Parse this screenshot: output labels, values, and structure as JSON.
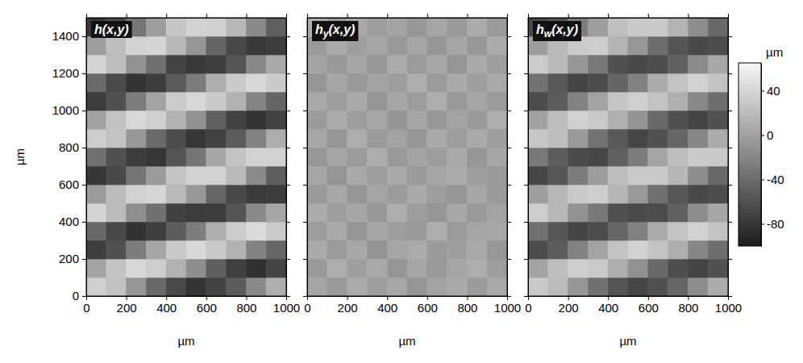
{
  "chart_data": [
    {
      "type": "heatmap",
      "title": "h(x,y)",
      "x": [
        50,
        150,
        250,
        350,
        450,
        550,
        650,
        750,
        850,
        950
      ],
      "y": [
        50,
        150,
        250,
        350,
        450,
        550,
        650,
        750,
        850,
        950,
        1050,
        1150,
        1250,
        1350,
        1450
      ],
      "z": [
        [
          35,
          25,
          -8,
          -42,
          -66,
          -82,
          -70,
          -52,
          -18,
          10
        ],
        [
          2,
          26,
          41,
          34,
          12,
          -14,
          -50,
          -72,
          -84,
          -70
        ],
        [
          -74,
          -60,
          -27,
          3,
          31,
          42,
          30,
          12,
          -23,
          -44
        ],
        [
          -42,
          -66,
          -83,
          -74,
          -52,
          -27,
          10,
          32,
          43,
          30
        ],
        [
          39,
          20,
          -13,
          -36,
          -72,
          -76,
          -76,
          -58,
          -17,
          4
        ],
        [
          -4,
          20,
          36,
          40,
          18,
          -7,
          -44,
          -66,
          -77,
          -76
        ],
        [
          -80,
          -66,
          -33,
          -4,
          26,
          36,
          36,
          18,
          -17,
          -50
        ],
        [
          -36,
          -60,
          -76,
          -80,
          -58,
          -33,
          4,
          26,
          37,
          36
        ],
        [
          34,
          26,
          -7,
          -41,
          -64,
          -80,
          -71,
          -52,
          -23,
          9
        ],
        [
          0,
          25,
          42,
          35,
          13,
          -12,
          -49,
          -71,
          -82,
          -71
        ],
        [
          -75,
          -61,
          -28,
          2,
          32,
          41,
          31,
          13,
          -22,
          -45
        ],
        [
          -41,
          -65,
          -82,
          -75,
          -53,
          -28,
          9,
          31,
          42,
          31
        ],
        [
          38,
          22,
          -11,
          -37,
          -70,
          -78,
          -74,
          -57,
          -19,
          6
        ],
        [
          -3,
          21,
          37,
          39,
          17,
          -8,
          -45,
          -67,
          -78,
          -75
        ],
        [
          -79,
          -65,
          -32,
          -3,
          27,
          37,
          35,
          17,
          -18,
          -49
        ]
      ],
      "xlim": [
        0,
        1000
      ],
      "ylim": [
        0,
        1500
      ],
      "xticks": [
        0,
        200,
        400,
        600,
        800,
        1000
      ],
      "yticks": [
        0,
        200,
        400,
        600,
        800,
        1000,
        1200,
        1400
      ],
      "x_label": "µm",
      "y_label": "µm"
    },
    {
      "type": "heatmap",
      "title": "hy(x,y)",
      "x": [
        50,
        150,
        250,
        350,
        450,
        550,
        650,
        750,
        850,
        950
      ],
      "y": [
        50,
        150,
        250,
        350,
        450,
        550,
        650,
        750,
        850,
        950,
        1050,
        1150,
        1250,
        1350,
        1450
      ],
      "z": [
        [
          4,
          -6,
          8,
          -3,
          5,
          -9,
          2,
          7,
          -4,
          6
        ],
        [
          -5,
          9,
          -2,
          6,
          -8,
          3,
          -6,
          4,
          9,
          -3
        ],
        [
          7,
          -4,
          5,
          -10,
          3,
          8,
          -5,
          -2,
          6,
          -7
        ],
        [
          -3,
          6,
          -9,
          4,
          -2,
          -6,
          10,
          -4,
          3,
          5
        ],
        [
          8,
          -2,
          4,
          -7,
          9,
          -3,
          -8,
          5,
          -6,
          2
        ],
        [
          -6,
          5,
          -8,
          3,
          -4,
          7,
          -2,
          -9,
          4,
          -5
        ],
        [
          3,
          -9,
          6,
          -2,
          7,
          -5,
          4,
          8,
          -3,
          -6
        ],
        [
          -7,
          3,
          -4,
          9,
          -6,
          2,
          -3,
          6,
          -8,
          4
        ],
        [
          5,
          -7,
          9,
          -4,
          2,
          -8,
          6,
          -3,
          7,
          -2
        ],
        [
          -4,
          8,
          -3,
          5,
          -9,
          4,
          -7,
          2,
          -5,
          9
        ],
        [
          6,
          -3,
          7,
          -8,
          4,
          -2,
          9,
          -6,
          3,
          -4
        ],
        [
          -8,
          4,
          -6,
          2,
          -3,
          9,
          -4,
          7,
          -2,
          6
        ],
        [
          2,
          -5,
          3,
          -7,
          8,
          -4,
          5,
          -9,
          6,
          -3
        ],
        [
          -5,
          7,
          -2,
          4,
          -6,
          3,
          -8,
          4,
          -7,
          8
        ],
        [
          9,
          -4,
          6,
          -3,
          2,
          -7,
          3,
          -5,
          8,
          -6
        ]
      ],
      "xlim": [
        0,
        1000
      ],
      "ylim": [
        0,
        1500
      ],
      "xticks": [
        0,
        200,
        400,
        600,
        800,
        1000
      ],
      "yticks": [
        0,
        200,
        400,
        600,
        800,
        1000,
        1200,
        1400
      ],
      "x_label": "µm",
      "tick_labels": "x"
    },
    {
      "type": "heatmap",
      "title": "hw(x,y)",
      "x": [
        50,
        150,
        250,
        350,
        450,
        550,
        650,
        750,
        850,
        950
      ],
      "y": [
        50,
        150,
        250,
        350,
        450,
        550,
        650,
        750,
        850,
        950,
        1050,
        1150,
        1250,
        1350,
        1450
      ],
      "z": [
        [
          30,
          20,
          -8,
          -36,
          -58,
          -68,
          -60,
          -44,
          -15,
          8
        ],
        [
          2,
          22,
          34,
          30,
          10,
          -12,
          -42,
          -62,
          -70,
          -60
        ],
        [
          -63,
          -52,
          -24,
          2,
          26,
          36,
          26,
          10,
          -20,
          -38
        ],
        [
          -36,
          -56,
          -70,
          -64,
          -44,
          -24,
          8,
          26,
          36,
          26
        ],
        [
          33,
          17,
          -11,
          -30,
          -61,
          -65,
          -64,
          -48,
          -15,
          4
        ],
        [
          -3,
          17,
          30,
          34,
          15,
          -6,
          -37,
          -56,
          -66,
          -64
        ],
        [
          -68,
          -56,
          -28,
          -3,
          22,
          31,
          30,
          15,
          -15,
          -42
        ],
        [
          -30,
          -51,
          -65,
          -68,
          -49,
          -28,
          3,
          22,
          31,
          30
        ],
        [
          29,
          22,
          -6,
          -35,
          -54,
          -68,
          -60,
          -44,
          -20,
          8
        ],
        [
          0,
          21,
          36,
          30,
          11,
          -10,
          -42,
          -60,
          -70,
          -60
        ],
        [
          -64,
          -52,
          -24,
          2,
          27,
          35,
          26,
          11,
          -19,
          -38
        ],
        [
          -35,
          -55,
          -70,
          -64,
          -45,
          -24,
          8,
          26,
          36,
          26
        ],
        [
          32,
          19,
          -9,
          -31,
          -60,
          -66,
          -63,
          -48,
          -16,
          5
        ],
        [
          -3,
          18,
          31,
          33,
          14,
          -7,
          -38,
          -57,
          -66,
          -64
        ],
        [
          -67,
          -55,
          -27,
          -3,
          23,
          31,
          30,
          14,
          -15,
          -42
        ]
      ],
      "xlim": [
        0,
        1000
      ],
      "ylim": [
        0,
        1500
      ],
      "xticks": [
        0,
        200,
        400,
        600,
        800,
        1000
      ],
      "yticks": [
        0,
        200,
        400,
        600,
        800,
        1000,
        1200,
        1400
      ],
      "x_label": "µm",
      "tick_labels": "x",
      "colorbar_lim": [
        -100,
        65
      ],
      "colorbar_ticks": [
        -80,
        -40,
        0,
        40
      ],
      "colorbar_label": "µm"
    }
  ]
}
